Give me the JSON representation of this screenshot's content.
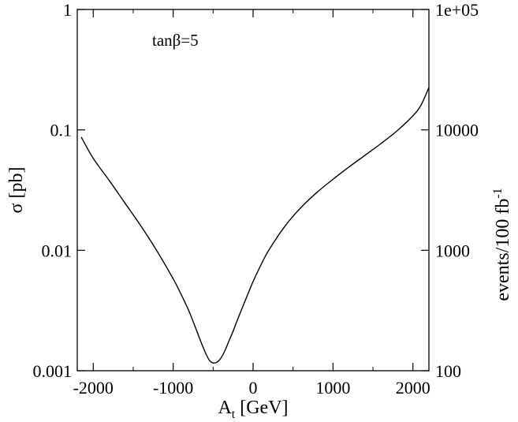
{
  "chart_data": {
    "type": "line",
    "title": "",
    "annotation": "tanβ=5",
    "xlabel_main": "A",
    "xlabel_sub": "t",
    "xlabel_rest": " [GeV]",
    "ylabel": "σ [pb]",
    "y2label_main": "events/100 fb",
    "y2label_sup": "-1",
    "xlim": [
      -2200,
      2200
    ],
    "ylim": [
      0.001,
      1
    ],
    "yscale": "log",
    "y2lim": [
      100,
      100000
    ],
    "x_ticks": [
      -2000,
      -1000,
      0,
      1000,
      2000
    ],
    "x_tick_labels": [
      "-2000",
      "-1000",
      "0",
      "1000",
      "2000"
    ],
    "y_ticks": [
      0.001,
      0.01,
      0.1,
      1
    ],
    "y_tick_labels": [
      "0.001",
      "0.01",
      "0.1",
      "1"
    ],
    "y2_ticks": [
      100,
      1000,
      10000,
      100000
    ],
    "y2_tick_labels": [
      "100",
      "1000",
      "10000",
      "1e+05"
    ],
    "grid": false,
    "legend": "none",
    "line_color": "#000000",
    "series": [
      {
        "x": [
          -2150,
          -2000,
          -1800,
          -1600,
          -1400,
          -1200,
          -1000,
          -900,
          -800,
          -700,
          -650,
          -600,
          -550,
          -500,
          -450,
          -400,
          -350,
          -300,
          -250,
          -200,
          -100,
          0,
          100,
          200,
          400,
          600,
          800,
          1000,
          1200,
          1400,
          1600,
          1800,
          2000,
          2100,
          2200
        ],
        "y": [
          0.087,
          0.058,
          0.038,
          0.0245,
          0.0158,
          0.0098,
          0.0058,
          0.0043,
          0.0031,
          0.0021,
          0.00172,
          0.00143,
          0.00123,
          0.00116,
          0.00118,
          0.00128,
          0.00148,
          0.00178,
          0.00213,
          0.0026,
          0.0038,
          0.0055,
          0.0076,
          0.0101,
          0.0159,
          0.0227,
          0.0303,
          0.0389,
          0.0492,
          0.0615,
          0.077,
          0.098,
          0.131,
          0.16,
          0.225
        ]
      }
    ]
  }
}
